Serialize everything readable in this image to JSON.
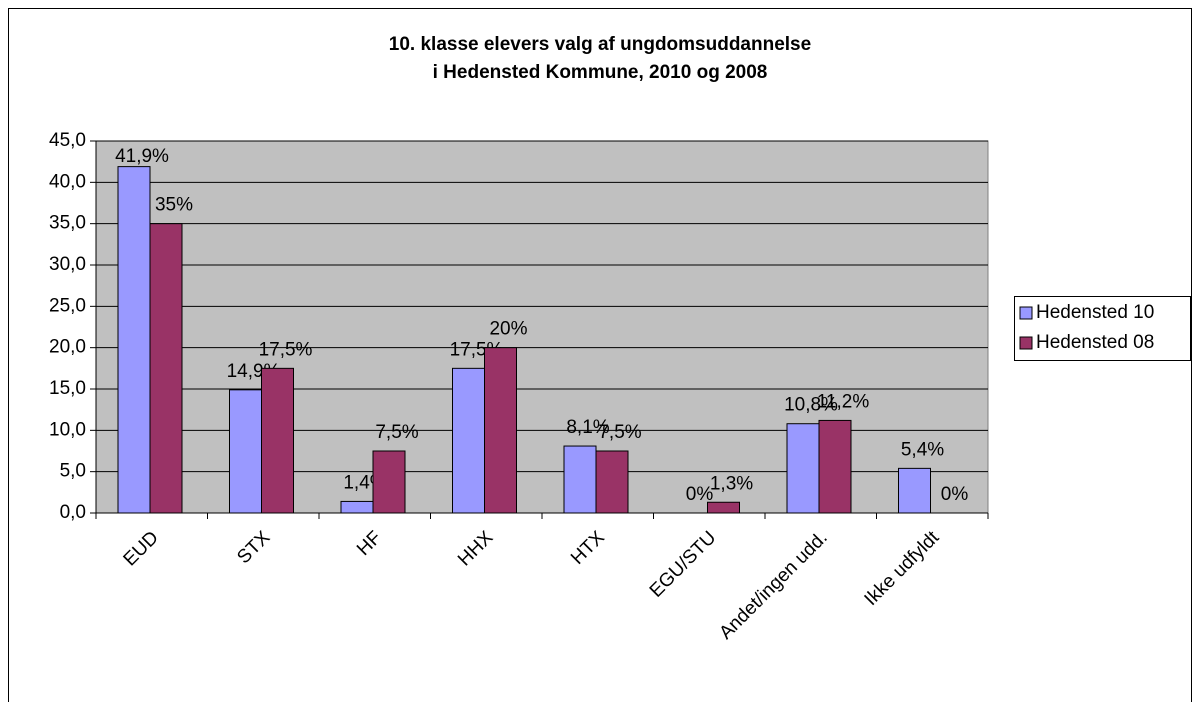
{
  "chart_data": {
    "type": "bar",
    "title": [
      "10. klasse elevers valg af ungdomsuddannelse",
      "i Hedensted Kommune, 2010 og 2008"
    ],
    "categories": [
      "EUD",
      "STX",
      "HF",
      "HHX",
      "HTX",
      "EGU/STU",
      "Andet/ingen udd.",
      "Ikke udfyldt"
    ],
    "series": [
      {
        "name": "Hedensted 10",
        "color": "#9999ff",
        "values": [
          41.9,
          14.9,
          1.4,
          17.5,
          8.1,
          0,
          10.8,
          5.4
        ],
        "value_labels": [
          "41,9%",
          "14,9%",
          "1,4%",
          "17,5%",
          "8,1%",
          "0%",
          "10,8%",
          "5,4%"
        ]
      },
      {
        "name": "Hedensted 08",
        "color": "#993366",
        "values": [
          35,
          17.5,
          7.5,
          20,
          7.5,
          1.3,
          11.2,
          0
        ],
        "value_labels": [
          "35%",
          "17,5%",
          "7,5%",
          "20%",
          "7,5%",
          "1,3%",
          "11,2%",
          "0%"
        ]
      }
    ],
    "ylim": [
      0,
      45
    ],
    "yticks": [
      {
        "value": 0,
        "label": "0,0"
      },
      {
        "value": 5,
        "label": "5,0"
      },
      {
        "value": 10,
        "label": "10,0"
      },
      {
        "value": 15,
        "label": "15,0"
      },
      {
        "value": 20,
        "label": "20,0"
      },
      {
        "value": 25,
        "label": "25,0"
      },
      {
        "value": 30,
        "label": "30,0"
      },
      {
        "value": 35,
        "label": "35,0"
      },
      {
        "value": 40,
        "label": "40,0"
      },
      {
        "value": 45,
        "label": "45,0"
      }
    ],
    "grid": true,
    "plot_background": "#c0c0c0",
    "legend": "right"
  }
}
